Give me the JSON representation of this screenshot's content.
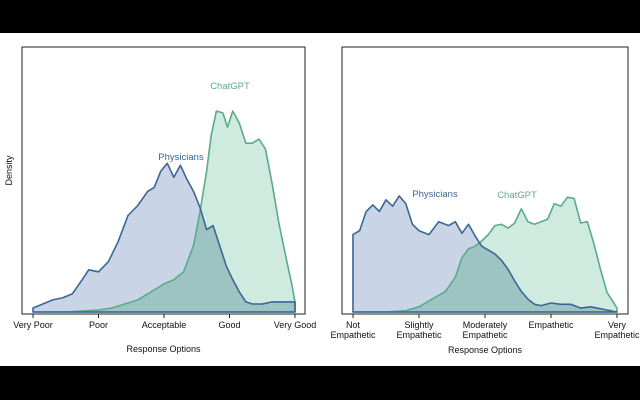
{
  "colors": {
    "physicians": "#3a6795",
    "physicians_fill": "#c9d4e6",
    "chatgpt": "#5aab8a",
    "chatgpt_fill": "#cfeadf",
    "overlap_fill": "#9dc3c3",
    "frame": "#222222"
  },
  "chart_data": [
    {
      "type": "area",
      "xlabel": "Response Options",
      "ylabel": "Density",
      "x_ticks": [
        "Very Poor",
        "Poor",
        "Acceptable",
        "Good",
        "Very Good"
      ],
      "xlim": [
        1,
        5
      ],
      "ylim": [
        0,
        1
      ],
      "grid": false,
      "series": [
        {
          "name": "Physicians",
          "x": [
            1.0,
            1.15,
            1.3,
            1.45,
            1.6,
            1.75,
            1.85,
            2.0,
            2.15,
            2.3,
            2.45,
            2.6,
            2.75,
            2.85,
            2.95,
            3.05,
            3.15,
            3.25,
            3.35,
            3.45,
            3.55,
            3.65,
            3.75,
            3.85,
            3.95,
            4.05,
            4.15,
            4.25,
            4.35,
            4.5,
            4.65,
            4.8,
            5.0
          ],
          "values": [
            0.02,
            0.04,
            0.06,
            0.07,
            0.09,
            0.16,
            0.21,
            0.2,
            0.25,
            0.35,
            0.48,
            0.53,
            0.6,
            0.62,
            0.7,
            0.74,
            0.67,
            0.73,
            0.66,
            0.6,
            0.52,
            0.41,
            0.43,
            0.33,
            0.23,
            0.16,
            0.1,
            0.05,
            0.04,
            0.04,
            0.05,
            0.05,
            0.05
          ]
        },
        {
          "name": "ChatGPT",
          "x": [
            1.0,
            1.5,
            2.0,
            2.2,
            2.4,
            2.6,
            2.75,
            2.85,
            3.0,
            3.15,
            3.3,
            3.45,
            3.55,
            3.65,
            3.72,
            3.8,
            3.9,
            3.97,
            4.05,
            4.15,
            4.25,
            4.35,
            4.45,
            4.55,
            4.65,
            4.75,
            4.85,
            4.95,
            5.0
          ],
          "values": [
            0.0,
            0.0,
            0.01,
            0.02,
            0.04,
            0.06,
            0.09,
            0.11,
            0.14,
            0.16,
            0.2,
            0.33,
            0.5,
            0.7,
            0.88,
            1.0,
            0.99,
            0.92,
            1.0,
            0.94,
            0.84,
            0.84,
            0.86,
            0.81,
            0.64,
            0.45,
            0.29,
            0.14,
            0.05
          ]
        }
      ]
    },
    {
      "type": "area",
      "xlabel": "Response Options",
      "ylabel": "",
      "x_ticks": [
        [
          "Not",
          "Empathetic"
        ],
        [
          "Slightly",
          "Empathetic"
        ],
        [
          "Moderately",
          "Empathetic"
        ],
        [
          "Empathetic"
        ],
        [
          "Very",
          "Empathetic"
        ]
      ],
      "xlim": [
        1,
        5
      ],
      "ylim": [
        0,
        1
      ],
      "grid": false,
      "series": [
        {
          "name": "Physicians",
          "x": [
            1.0,
            1.1,
            1.2,
            1.3,
            1.4,
            1.5,
            1.6,
            1.7,
            1.8,
            1.9,
            2.0,
            2.15,
            2.3,
            2.45,
            2.55,
            2.65,
            2.75,
            2.85,
            2.95,
            3.05,
            3.15,
            3.25,
            3.35,
            3.45,
            3.55,
            3.65,
            3.75,
            3.85,
            4.0,
            4.15,
            4.3,
            4.45,
            4.6,
            4.8,
            5.0
          ],
          "values": [
            0.6,
            0.63,
            0.78,
            0.83,
            0.78,
            0.87,
            0.82,
            0.9,
            0.84,
            0.68,
            0.63,
            0.6,
            0.7,
            0.67,
            0.7,
            0.61,
            0.68,
            0.59,
            0.51,
            0.48,
            0.45,
            0.4,
            0.33,
            0.24,
            0.16,
            0.1,
            0.06,
            0.05,
            0.07,
            0.06,
            0.06,
            0.03,
            0.04,
            0.02,
            0.0
          ]
        },
        {
          "name": "ChatGPT",
          "x": [
            1.0,
            1.5,
            1.8,
            2.0,
            2.2,
            2.4,
            2.55,
            2.65,
            2.75,
            2.85,
            2.95,
            3.05,
            3.15,
            3.25,
            3.35,
            3.45,
            3.55,
            3.65,
            3.75,
            3.85,
            3.95,
            4.05,
            4.15,
            4.25,
            4.35,
            4.45,
            4.55,
            4.65,
            4.75,
            4.85,
            5.0
          ],
          "values": [
            0.0,
            0.0,
            0.01,
            0.04,
            0.1,
            0.16,
            0.27,
            0.42,
            0.49,
            0.51,
            0.55,
            0.6,
            0.67,
            0.68,
            0.65,
            0.69,
            0.8,
            0.7,
            0.68,
            0.7,
            0.72,
            0.84,
            0.82,
            0.89,
            0.88,
            0.69,
            0.7,
            0.53,
            0.33,
            0.15,
            0.03
          ]
        }
      ]
    }
  ]
}
